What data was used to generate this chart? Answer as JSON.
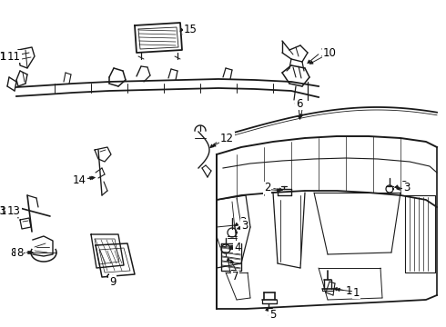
{
  "background_color": "#ffffff",
  "line_color": "#1a1a1a",
  "text_color": "#000000",
  "fig_width": 4.9,
  "fig_height": 3.6,
  "dpi": 100,
  "label_fontsize": 8.5,
  "line_width": 0.9
}
